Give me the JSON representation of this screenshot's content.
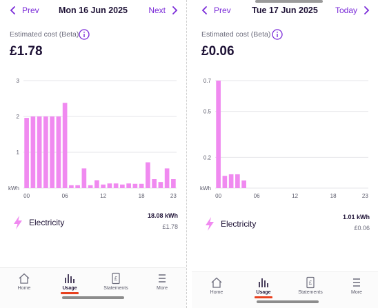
{
  "left": {
    "prev_label": "Prev",
    "date": "Mon 16 Jun 2025",
    "next_label": "Next",
    "estimated_label": "Estimated cost (Beta)",
    "cost": "£1.78",
    "electricity_label": "Electricity",
    "kwh_total": "18.08 kWh",
    "pound_total": "£1.78"
  },
  "right": {
    "prev_label": "Prev",
    "date": "Tue 17 Jun 2025",
    "next_label": "Today",
    "estimated_label": "Estimated cost (Beta)",
    "cost": "£0.06",
    "electricity_label": "Electricity",
    "kwh_total": "1.01 kWh",
    "pound_total": "£0.06"
  },
  "bottom_nav": {
    "items": [
      {
        "label": "Home",
        "icon": "home-icon"
      },
      {
        "label": "Usage",
        "icon": "usage-icon"
      },
      {
        "label": "Statements",
        "icon": "statements-icon"
      },
      {
        "label": "More",
        "icon": "menu-icon"
      }
    ],
    "active": "Usage"
  },
  "colors": {
    "accent": "#7a2ad8",
    "bar": "#f08af0",
    "active_underline": "#e8411f",
    "text": "#1e1236"
  },
  "chart_data": [
    {
      "type": "bar",
      "title": "",
      "xlabel": "",
      "ylabel": "kWh",
      "x": [
        0,
        1,
        2,
        3,
        4,
        5,
        6,
        7,
        8,
        9,
        10,
        11,
        12,
        13,
        14,
        15,
        16,
        17,
        18,
        19,
        20,
        21,
        22,
        23
      ],
      "values": [
        1.96,
        2.0,
        2.0,
        2.0,
        2.0,
        2.0,
        2.38,
        0.08,
        0.08,
        0.55,
        0.08,
        0.22,
        0.1,
        0.13,
        0.13,
        0.1,
        0.13,
        0.12,
        0.12,
        0.72,
        0.25,
        0.17,
        0.55,
        0.25
      ],
      "x_ticks": [
        "00",
        "06",
        "12",
        "18",
        "23"
      ],
      "y_ticks": [
        "1",
        "2",
        "3"
      ],
      "ylim": [
        0,
        3
      ],
      "grid": true
    },
    {
      "type": "bar",
      "title": "",
      "xlabel": "",
      "ylabel": "kWh",
      "x": [
        0,
        1,
        2,
        3,
        4
      ],
      "values": [
        0.7,
        0.08,
        0.09,
        0.09,
        0.05
      ],
      "x_ticks": [
        "00",
        "06",
        "12",
        "18",
        "23"
      ],
      "y_ticks": [
        "0.2",
        "0.5",
        "0.7"
      ],
      "ylim": [
        0,
        0.7
      ],
      "grid": true
    }
  ]
}
